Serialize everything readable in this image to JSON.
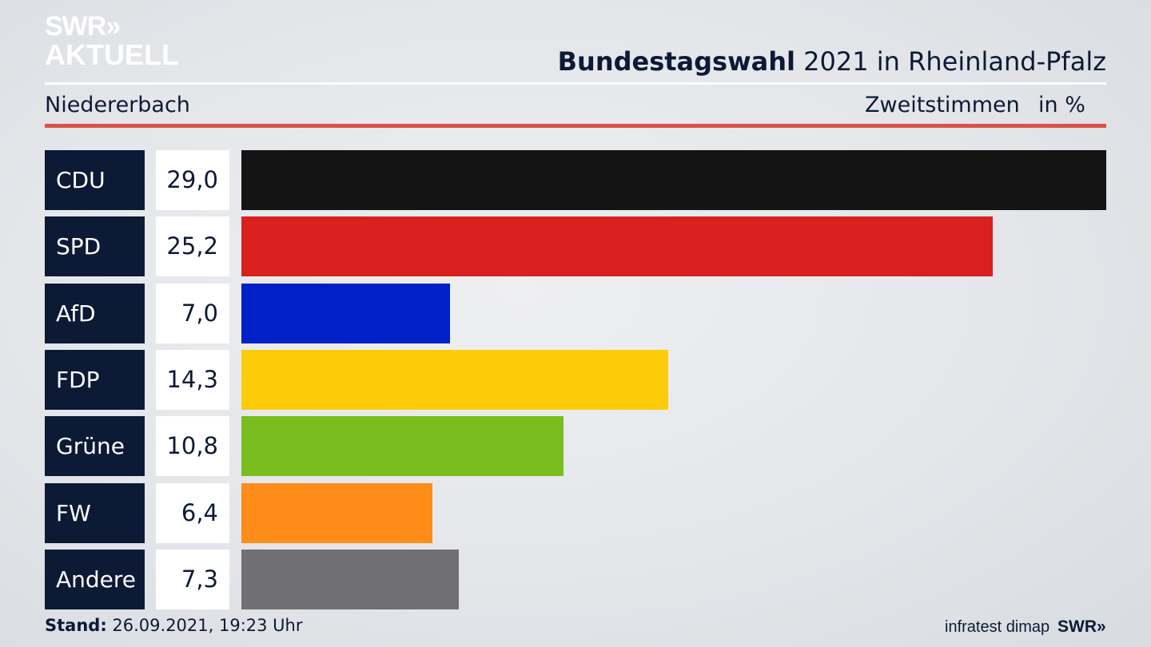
{
  "logo": {
    "line1": "SWR»",
    "line2": "AKTUELL"
  },
  "header": {
    "title_bold": "Bundestagswahl",
    "title_rest": " 2021 in Rheinland-Pfalz",
    "subtitle": "Niedererbach",
    "measure": "Zweitstimmen",
    "unit": "in %"
  },
  "chart_data": {
    "type": "bar",
    "orientation": "horizontal",
    "categories": [
      "CDU",
      "SPD",
      "AfD",
      "FDP",
      "Grüne",
      "FW",
      "Andere"
    ],
    "values": [
      29.0,
      25.2,
      7.0,
      14.3,
      10.8,
      6.4,
      7.3
    ],
    "value_labels": [
      "29,0",
      "25,2",
      "7,0",
      "14,3",
      "10,8",
      "6,4",
      "7,3"
    ],
    "colors": [
      "#141414",
      "#d8211f",
      "#0020c8",
      "#fccc0a",
      "#79be1e",
      "#fd8c19",
      "#707072"
    ],
    "title": "Bundestagswahl 2021 in Rheinland-Pfalz",
    "subtitle": "Niedererbach",
    "xlim": [
      0,
      29.0
    ],
    "grid": false
  },
  "footer": {
    "stand_label": "Stand:",
    "stand_value": " 26.09.2021, 19:23 Uhr",
    "source": "infratest dimap",
    "brand": "SWR»"
  }
}
